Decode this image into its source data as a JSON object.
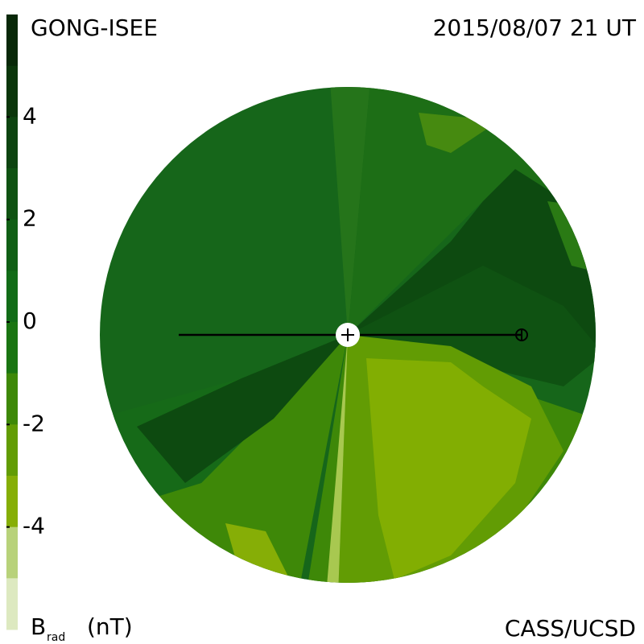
{
  "header": {
    "source": "GONG-ISEE",
    "date": "2015/08/07 21 UT"
  },
  "footer": {
    "credit": "CASS/UCSD"
  },
  "colorbar": {
    "quantity": "B",
    "quantity_subscript": "rad",
    "unit": "(nT)",
    "clim": [
      -6,
      6
    ],
    "ticks": [
      4,
      2,
      0,
      -2,
      -4
    ],
    "colors": [
      "#082808",
      "#0b360b",
      "#0d4410",
      "#0f5212",
      "#105f15",
      "#126c17",
      "#1a7512",
      "#3e8808",
      "#629c04",
      "#86ae06",
      "#b8d27a",
      "#dde9c0"
    ]
  }
}
